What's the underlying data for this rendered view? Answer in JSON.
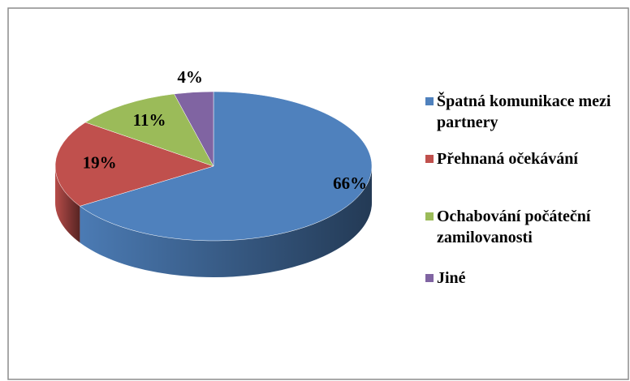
{
  "chart_data": {
    "type": "pie3d",
    "categories": [
      "Špatná komunikace mezi partnery",
      "Přehnaná očekávání",
      "Ochabování počáteční zamilovanosti",
      "Jiné"
    ],
    "values": [
      66,
      19,
      11,
      4
    ],
    "value_labels": [
      "66%",
      "19%",
      "11%",
      "4%"
    ],
    "colors": [
      "#4f81bd",
      "#c0504d",
      "#9bbb59",
      "#8064a2"
    ],
    "legend": "right"
  }
}
